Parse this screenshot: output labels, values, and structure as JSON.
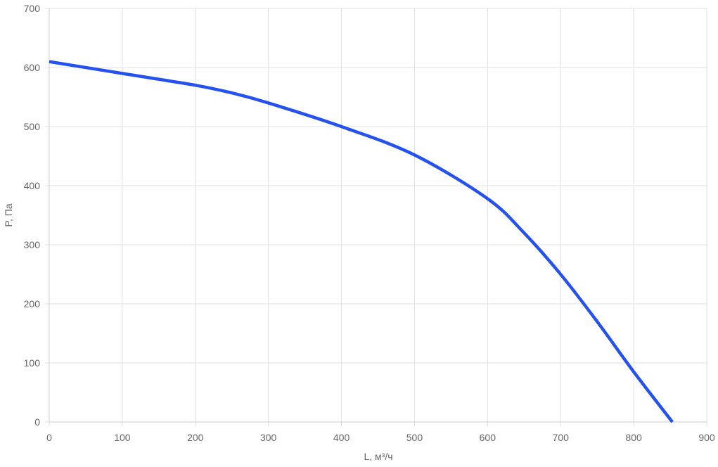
{
  "chart_data": {
    "type": "line",
    "title": "",
    "xlabel": "L, м³/ч",
    "ylabel": "P, Па",
    "xlim": [
      0,
      900
    ],
    "ylim": [
      0,
      700
    ],
    "x_ticks": [
      0,
      100,
      200,
      300,
      400,
      500,
      600,
      700,
      800,
      900
    ],
    "y_ticks": [
      0,
      100,
      200,
      300,
      400,
      500,
      600,
      700
    ],
    "grid": true,
    "legend": "none",
    "series": [
      {
        "color": "#2552ee",
        "x": [
          0,
          100,
          200,
          250,
          300,
          400,
          500,
          600,
          650,
          700,
          750,
          800,
          853
        ],
        "y": [
          610,
          590,
          570,
          557,
          540,
          500,
          452,
          378,
          320,
          250,
          170,
          85,
          0
        ]
      }
    ]
  }
}
